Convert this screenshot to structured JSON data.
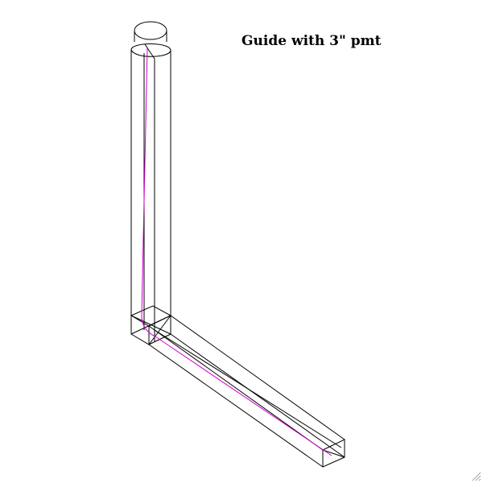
{
  "title": "Guide with 3\" pmt",
  "colors": {
    "wireframe": "#000000",
    "guide_path": "#cc00cc",
    "background": "#ffffff",
    "grip": "#a0a0a0"
  },
  "icons": {
    "resize_grip": "resize-grip-icon"
  }
}
